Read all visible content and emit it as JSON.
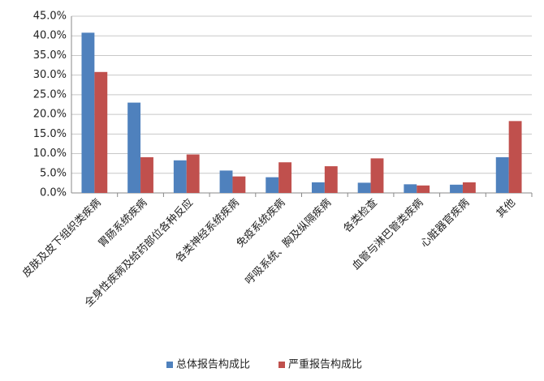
{
  "chart_data": {
    "type": "bar",
    "categories": [
      "皮肤及皮下组织类疾病",
      "胃肠系统疾病",
      "全身性疾病及给药部位各种反应",
      "各类神经系统疾病",
      "免疫系统疾病",
      "呼吸系统、胸及纵隔疾病",
      "各类检查",
      "血管与淋巴管类疾病",
      "心脏器官疾病",
      "其他"
    ],
    "series": [
      {
        "name": "总体报告构成比",
        "color": "#4f81bd",
        "values": [
          40.8,
          23.0,
          8.3,
          5.7,
          4.0,
          2.7,
          2.6,
          2.2,
          2.1,
          9.1
        ]
      },
      {
        "name": "严重报告构成比",
        "color": "#c0504d",
        "values": [
          30.8,
          9.1,
          9.8,
          4.2,
          7.8,
          6.8,
          8.8,
          1.9,
          2.7,
          18.3
        ]
      }
    ],
    "ylim": [
      0,
      45
    ],
    "yticks": [
      {
        "value": 0,
        "label": "0.0%"
      },
      {
        "value": 5,
        "label": "5.0%"
      },
      {
        "value": 10,
        "label": "10.0%"
      },
      {
        "value": 15,
        "label": "15.0%"
      },
      {
        "value": 20,
        "label": "20.0%"
      },
      {
        "value": 25,
        "label": "25.0%"
      },
      {
        "value": 30,
        "label": "30.0%"
      },
      {
        "value": 35,
        "label": "35.0%"
      },
      {
        "value": 40,
        "label": "40.0%"
      },
      {
        "value": 45,
        "label": "45.0%"
      }
    ],
    "grid": true,
    "legend": "bottom"
  }
}
